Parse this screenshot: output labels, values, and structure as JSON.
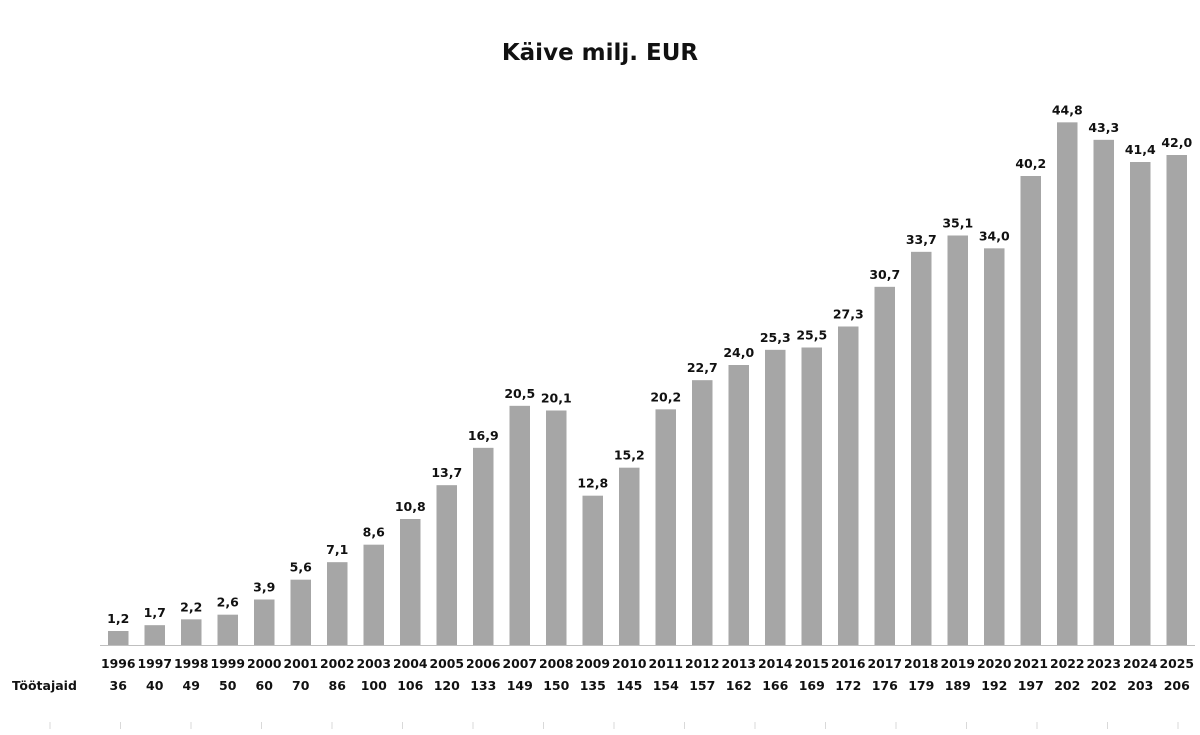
{
  "chart_data": {
    "type": "bar",
    "title": "Käive milj. EUR",
    "xlabel": "",
    "ylabel": "",
    "ylim": [
      0,
      45
    ],
    "grid": false,
    "legend": "none",
    "bar_color": "#a6a6a6",
    "categories": [
      "1996",
      "1997",
      "1998",
      "1999",
      "2000",
      "2001",
      "2002",
      "2003",
      "2004",
      "2005",
      "2006",
      "2007",
      "2008",
      "2009",
      "2010",
      "2011",
      "2012",
      "2013",
      "2014",
      "2015",
      "2016",
      "2017",
      "2018",
      "2019",
      "2020",
      "2021",
      "2022",
      "2023",
      "2024",
      "2025"
    ],
    "values": [
      1.2,
      1.7,
      2.2,
      2.6,
      3.9,
      5.6,
      7.1,
      8.6,
      10.8,
      13.7,
      16.9,
      20.5,
      20.1,
      12.8,
      15.2,
      20.2,
      22.7,
      24.0,
      25.3,
      25.5,
      27.3,
      30.7,
      33.7,
      35.1,
      34.0,
      40.2,
      44.8,
      43.3,
      41.4,
      42.0
    ],
    "value_labels": [
      "1,2",
      "1,7",
      "2,2",
      "2,6",
      "3,9",
      "5,6",
      "7,1",
      "8,6",
      "10,8",
      "13,7",
      "16,9",
      "20,5",
      "20,1",
      "12,8",
      "15,2",
      "20,2",
      "22,7",
      "24,0",
      "25,3",
      "25,5",
      "27,3",
      "30,7",
      "33,7",
      "35,1",
      "34,0",
      "40,2",
      "44,8",
      "43,3",
      "41,4",
      "42,0"
    ],
    "table_row": {
      "label": "Töötajaid",
      "values": [
        "36",
        "40",
        "49",
        "50",
        "60",
        "70",
        "86",
        "100",
        "106",
        "120",
        "133",
        "149",
        "150",
        "135",
        "145",
        "154",
        "157",
        "162",
        "166",
        "169",
        "172",
        "176",
        "179",
        "189",
        "192",
        "197",
        "202",
        "202",
        "203",
        "206"
      ]
    }
  }
}
